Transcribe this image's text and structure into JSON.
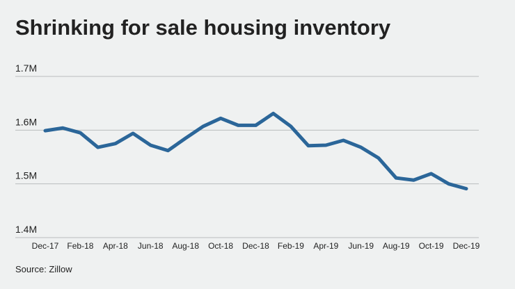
{
  "chart_data": {
    "type": "line",
    "title": "Shrinking for sale housing inventory",
    "source": "Source: Zillow",
    "categories": [
      "Dec-17",
      null,
      "Feb-18",
      null,
      "Apr-18",
      null,
      "Jun-18",
      null,
      "Aug-18",
      null,
      "Oct-18",
      null,
      "Dec-18",
      null,
      "Feb-19",
      null,
      "Apr-19",
      null,
      "Jun-19",
      null,
      "Aug-19",
      null,
      "Oct-19",
      null,
      "Dec-19"
    ],
    "values": [
      1599000,
      1604000,
      1595000,
      1568000,
      1575000,
      1594000,
      1572000,
      1562000,
      1585000,
      1607000,
      1622000,
      1609000,
      1609000,
      1631000,
      1607000,
      1571000,
      1572000,
      1581000,
      1568000,
      1548000,
      1511000,
      1507000,
      1519000,
      1500000,
      1491000
    ],
    "color": "#2b6699",
    "ylim": [
      1400000,
      1700000
    ],
    "yticks": [
      {
        "value": 1400000,
        "label": "1.4M"
      },
      {
        "value": 1500000,
        "label": "1.5M"
      },
      {
        "value": 1600000,
        "label": "1.6M"
      },
      {
        "value": 1700000,
        "label": "1.7M"
      }
    ],
    "grid": true
  }
}
